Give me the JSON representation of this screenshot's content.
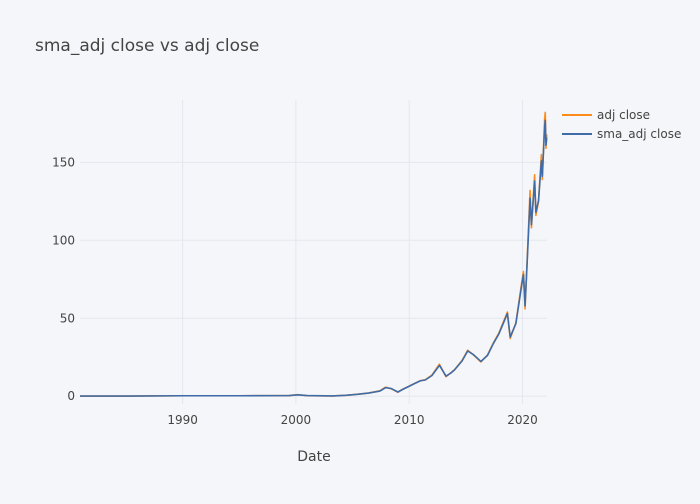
{
  "chart_data": {
    "type": "line",
    "title": "sma_adj close vs adj close",
    "xlabel": "Date",
    "ylabel": "",
    "x_range": [
      "1980-12-12",
      "2022-03-01"
    ],
    "ylim": [
      -5,
      190
    ],
    "x_ticks": [
      {
        "label": "1990",
        "date": "1990-01-01"
      },
      {
        "label": "2000",
        "date": "2000-01-01"
      },
      {
        "label": "2010",
        "date": "2010-01-01"
      },
      {
        "label": "2020",
        "date": "2020-01-01"
      }
    ],
    "y_ticks": [
      {
        "label": "0",
        "value": 0
      },
      {
        "label": "50",
        "value": 50
      },
      {
        "label": "100",
        "value": 100
      },
      {
        "label": "150",
        "value": 150
      }
    ],
    "grid": true,
    "legend_position": "top-right",
    "series": [
      {
        "name": "adj close",
        "color": "#ff8c1a",
        "points": [
          [
            "1980-12-12",
            0.1
          ],
          [
            "1985-01-01",
            0.1
          ],
          [
            "1990-01-01",
            0.3
          ],
          [
            "1995-01-01",
            0.3
          ],
          [
            "1999-06-01",
            0.4
          ],
          [
            "2000-03-01",
            1.0
          ],
          [
            "2001-01-01",
            0.3
          ],
          [
            "2003-04-01",
            0.2
          ],
          [
            "2004-06-01",
            0.6
          ],
          [
            "2005-06-01",
            1.2
          ],
          [
            "2006-06-01",
            2.0
          ],
          [
            "2007-06-01",
            3.5
          ],
          [
            "2007-12-01",
            5.8
          ],
          [
            "2008-06-01",
            4.8
          ],
          [
            "2009-01-01",
            2.5
          ],
          [
            "2009-06-01",
            4.5
          ],
          [
            "2010-01-01",
            6.5
          ],
          [
            "2010-06-01",
            8.0
          ],
          [
            "2011-01-01",
            10.0
          ],
          [
            "2011-06-01",
            10.5
          ],
          [
            "2012-01-01",
            13.5
          ],
          [
            "2012-09-01",
            20.5
          ],
          [
            "2013-04-01",
            12.5
          ],
          [
            "2013-09-01",
            15.0
          ],
          [
            "2014-01-01",
            17.0
          ],
          [
            "2014-09-01",
            23.0
          ],
          [
            "2015-03-01",
            29.5
          ],
          [
            "2015-09-01",
            26.5
          ],
          [
            "2016-05-01",
            22.0
          ],
          [
            "2016-12-01",
            26.5
          ],
          [
            "2017-06-01",
            34.0
          ],
          [
            "2017-12-01",
            40.5
          ],
          [
            "2018-09-01",
            54.0
          ],
          [
            "2018-12-01",
            37.0
          ],
          [
            "2019-06-01",
            47.0
          ],
          [
            "2019-12-01",
            72.0
          ],
          [
            "2020-02-01",
            80.0
          ],
          [
            "2020-03-23",
            56.0
          ],
          [
            "2020-06-01",
            88.0
          ],
          [
            "2020-09-01",
            132.0
          ],
          [
            "2020-10-15",
            108.0
          ],
          [
            "2021-01-26",
            142.0
          ],
          [
            "2021-03-08",
            116.0
          ],
          [
            "2021-06-01",
            125.0
          ],
          [
            "2021-09-01",
            155.0
          ],
          [
            "2021-10-01",
            139.0
          ],
          [
            "2021-12-15",
            178.0
          ],
          [
            "2022-01-04",
            182.0
          ],
          [
            "2022-01-27",
            159.0
          ],
          [
            "2022-02-20",
            168.0
          ]
        ]
      },
      {
        "name": "sma_adj close",
        "color": "#3f6ca8",
        "points": [
          [
            "1980-12-12",
            0.1
          ],
          [
            "1985-01-01",
            0.1
          ],
          [
            "1990-01-01",
            0.3
          ],
          [
            "1995-01-01",
            0.3
          ],
          [
            "1999-06-01",
            0.4
          ],
          [
            "2000-03-01",
            0.9
          ],
          [
            "2001-01-01",
            0.4
          ],
          [
            "2003-04-01",
            0.2
          ],
          [
            "2004-06-01",
            0.6
          ],
          [
            "2005-06-01",
            1.2
          ],
          [
            "2006-06-01",
            2.0
          ],
          [
            "2007-06-01",
            3.3
          ],
          [
            "2007-12-01",
            5.5
          ],
          [
            "2008-06-01",
            4.9
          ],
          [
            "2009-01-01",
            2.7
          ],
          [
            "2009-06-01",
            4.3
          ],
          [
            "2010-01-01",
            6.4
          ],
          [
            "2010-06-01",
            7.9
          ],
          [
            "2011-01-01",
            9.9
          ],
          [
            "2011-06-01",
            10.4
          ],
          [
            "2012-01-01",
            13.2
          ],
          [
            "2012-09-01",
            19.8
          ],
          [
            "2013-04-01",
            12.9
          ],
          [
            "2013-09-01",
            14.8
          ],
          [
            "2014-01-01",
            16.9
          ],
          [
            "2014-09-01",
            22.6
          ],
          [
            "2015-03-01",
            29.0
          ],
          [
            "2015-09-01",
            26.7
          ],
          [
            "2016-05-01",
            22.3
          ],
          [
            "2016-12-01",
            26.2
          ],
          [
            "2017-06-01",
            33.6
          ],
          [
            "2017-12-01",
            40.0
          ],
          [
            "2018-09-01",
            53.0
          ],
          [
            "2018-12-01",
            38.0
          ],
          [
            "2019-06-01",
            46.5
          ],
          [
            "2019-12-01",
            70.5
          ],
          [
            "2020-02-01",
            78.0
          ],
          [
            "2020-03-23",
            58.0
          ],
          [
            "2020-06-01",
            86.5
          ],
          [
            "2020-09-01",
            127.0
          ],
          [
            "2020-10-15",
            110.0
          ],
          [
            "2021-01-26",
            138.0
          ],
          [
            "2021-03-08",
            118.0
          ],
          [
            "2021-06-01",
            125.5
          ],
          [
            "2021-09-01",
            151.0
          ],
          [
            "2021-10-01",
            141.0
          ],
          [
            "2021-12-15",
            173.0
          ],
          [
            "2022-01-04",
            177.0
          ],
          [
            "2022-01-27",
            161.0
          ],
          [
            "2022-02-20",
            166.0
          ]
        ]
      }
    ]
  }
}
